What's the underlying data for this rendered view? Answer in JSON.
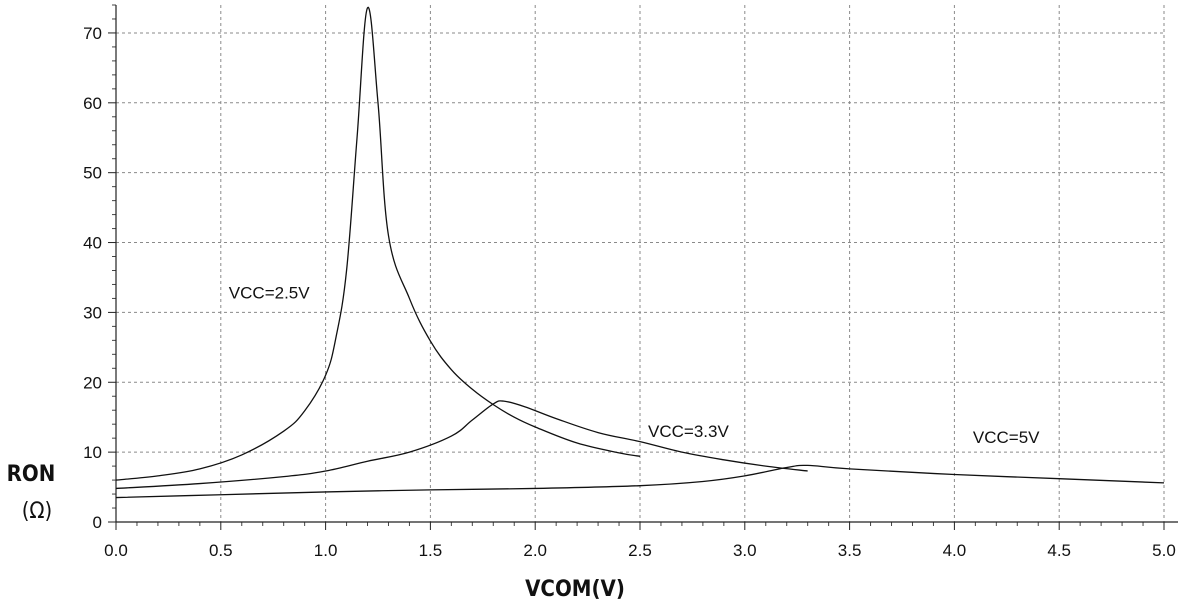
{
  "chart_data": {
    "type": "line",
    "title": "",
    "xlabel": "VCOM(V)",
    "ylabel": "RON",
    "ylabel_unit": "(Ω)",
    "xlim": [
      0.0,
      5.0
    ],
    "ylim": [
      0,
      74
    ],
    "xticks": [
      "0.0",
      "0.5",
      "1.0",
      "1.5",
      "2.0",
      "2.5",
      "3.0",
      "3.5",
      "4.0",
      "4.5",
      "5.0"
    ],
    "yticks": [
      "0",
      "10",
      "20",
      "30",
      "40",
      "50",
      "60",
      "70"
    ],
    "grid": true,
    "series": [
      {
        "name": "VCC=2.5V",
        "label_at": [
          0.5,
          32
        ],
        "points": [
          [
            0,
            6
          ],
          [
            0.2,
            6.6
          ],
          [
            0.4,
            7.6
          ],
          [
            0.6,
            9.6
          ],
          [
            0.8,
            13
          ],
          [
            0.9,
            15.9
          ],
          [
            1.0,
            21
          ],
          [
            1.05,
            26.5
          ],
          [
            1.1,
            36
          ],
          [
            1.15,
            55
          ],
          [
            1.2,
            73.6
          ],
          [
            1.25,
            60
          ],
          [
            1.3,
            41
          ],
          [
            1.4,
            32
          ],
          [
            1.5,
            25.9
          ],
          [
            1.6,
            21.8
          ],
          [
            1.7,
            19
          ],
          [
            1.8,
            16.8
          ],
          [
            1.9,
            15
          ],
          [
            2.0,
            13.6
          ],
          [
            2.2,
            11.3
          ],
          [
            2.4,
            9.9
          ],
          [
            2.5,
            9.4
          ]
        ]
      },
      {
        "name": "VCC=3.3V",
        "label_at": [
          2.5,
          12.2
        ],
        "points": [
          [
            0,
            4.8
          ],
          [
            0.4,
            5.5
          ],
          [
            0.8,
            6.5
          ],
          [
            1.0,
            7.3
          ],
          [
            1.2,
            8.7
          ],
          [
            1.4,
            10
          ],
          [
            1.6,
            12.3
          ],
          [
            1.7,
            14.6
          ],
          [
            1.8,
            16.9
          ],
          [
            1.85,
            17.3
          ],
          [
            1.95,
            16.5
          ],
          [
            2.1,
            14.8
          ],
          [
            2.3,
            12.8
          ],
          [
            2.5,
            11.5
          ],
          [
            2.7,
            10
          ],
          [
            2.9,
            8.9
          ],
          [
            3.1,
            8
          ],
          [
            3.3,
            7.3
          ]
        ]
      },
      {
        "name": "VCC=5V",
        "label_at": [
          4.05,
          11.3
        ],
        "points": [
          [
            0,
            3.5
          ],
          [
            0.5,
            3.9
          ],
          [
            1.0,
            4.3
          ],
          [
            1.5,
            4.6
          ],
          [
            2.0,
            4.8
          ],
          [
            2.5,
            5.2
          ],
          [
            2.8,
            5.8
          ],
          [
            3.0,
            6.6
          ],
          [
            3.2,
            7.8
          ],
          [
            3.3,
            8.1
          ],
          [
            3.5,
            7.6
          ],
          [
            4.0,
            6.8
          ],
          [
            4.5,
            6.2
          ],
          [
            5.0,
            5.6
          ]
        ]
      }
    ]
  }
}
